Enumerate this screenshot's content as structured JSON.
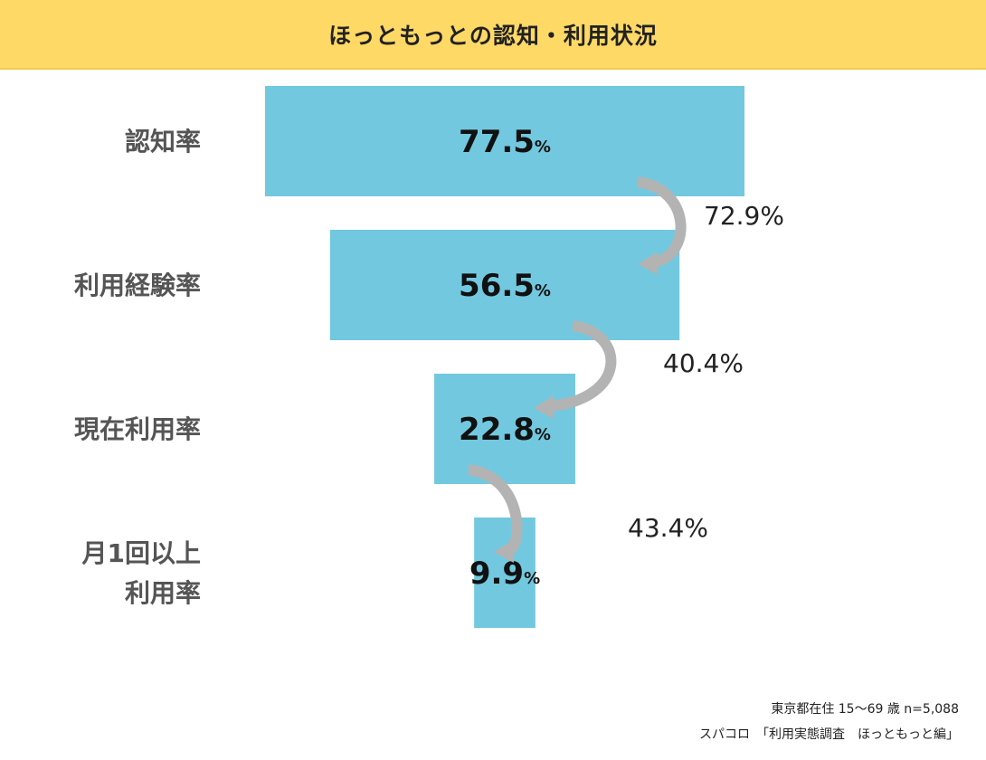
{
  "title": "ほっともっとの認知・利用状況",
  "chart_data": {
    "type": "bar",
    "orientation": "funnel",
    "categories": [
      [
        "認知率"
      ],
      [
        "利用経験率"
      ],
      [
        "現在利用率"
      ],
      [
        "月1回以上",
        "利用率"
      ]
    ],
    "values": [
      77.5,
      56.5,
      22.8,
      9.9
    ],
    "value_labels": [
      "77.5",
      "56.5",
      "22.8",
      "9.9"
    ],
    "value_unit": "%",
    "conversion_rates": [
      "72.9%",
      "40.4%",
      "43.4%"
    ],
    "colors": {
      "bar": "#72c8df",
      "arrow": "#b3b3b3"
    }
  },
  "footer": {
    "line1": "東京都在住 15〜69 歳 n=5,088",
    "line2": "スパコロ　「利用実態調査　ほっともっと編」"
  }
}
